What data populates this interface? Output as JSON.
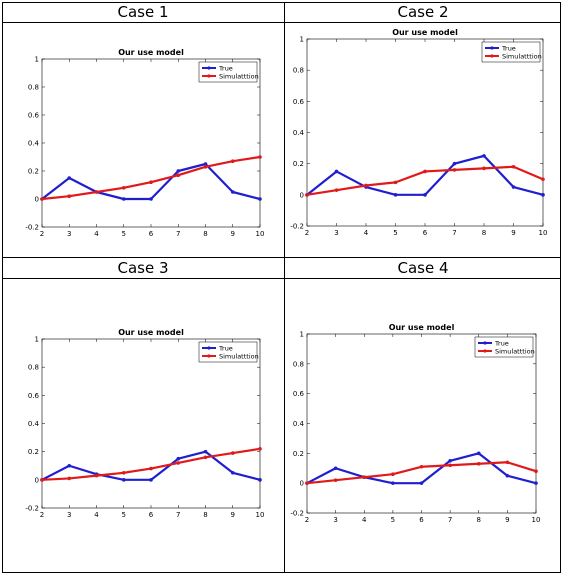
{
  "colors": {
    "true_series": "#1f1fd0",
    "sim_series": "#e01a1a"
  },
  "cases": [
    {
      "header": "Case 1",
      "chart_data": {
        "type": "line",
        "title": "Our use model",
        "x": [
          2,
          3,
          4,
          5,
          6,
          7,
          8,
          9,
          10
        ],
        "xticks": [
          "2",
          "3",
          "4",
          "5",
          "6",
          "7",
          "8",
          "9",
          "10"
        ],
        "yticks": [
          "-0.2",
          "0",
          "0.2",
          "0.4",
          "0.6",
          "0.8",
          "1"
        ],
        "xlim": [
          2,
          10
        ],
        "ylim": [
          -0.2,
          1
        ],
        "legend_position": "top-right",
        "series": [
          {
            "name": "True",
            "color": "#1f1fd0",
            "values": [
              0.0,
              0.15,
              0.05,
              0.0,
              0.0,
              0.2,
              0.25,
              0.05,
              0.0
            ]
          },
          {
            "name": "Simulatttion",
            "color": "#e01a1a",
            "values": [
              0.0,
              0.02,
              0.05,
              0.08,
              0.12,
              0.17,
              0.23,
              0.27,
              0.3
            ]
          }
        ]
      }
    },
    {
      "header": "Case 2",
      "chart_data": {
        "type": "line",
        "title": "Our use model",
        "x": [
          2,
          3,
          4,
          5,
          6,
          7,
          8,
          9,
          10
        ],
        "xticks": [
          "2",
          "3",
          "4",
          "5",
          "6",
          "7",
          "8",
          "9",
          "10"
        ],
        "yticks": [
          "-0.2",
          "0",
          "0.2",
          "0.4",
          "0.6",
          "0.8",
          "1"
        ],
        "xlim": [
          2,
          10
        ],
        "ylim": [
          -0.2,
          1
        ],
        "legend_position": "top-right",
        "series": [
          {
            "name": "True",
            "color": "#1f1fd0",
            "values": [
              0.0,
              0.15,
              0.05,
              0.0,
              0.0,
              0.2,
              0.25,
              0.05,
              0.0
            ]
          },
          {
            "name": "Simulatttion",
            "color": "#e01a1a",
            "values": [
              0.0,
              0.03,
              0.06,
              0.08,
              0.15,
              0.16,
              0.17,
              0.18,
              0.1
            ]
          }
        ]
      }
    },
    {
      "header": "Case 3",
      "chart_data": {
        "type": "line",
        "title": "Our use model",
        "x": [
          2,
          3,
          4,
          5,
          6,
          7,
          8,
          9,
          10
        ],
        "xticks": [
          "2",
          "3",
          "4",
          "5",
          "6",
          "7",
          "8",
          "9",
          "10"
        ],
        "yticks": [
          "-0.2",
          "0",
          "0.2",
          "0.4",
          "0.6",
          "0.8",
          "1"
        ],
        "xlim": [
          2,
          10
        ],
        "ylim": [
          -0.2,
          1
        ],
        "legend_position": "top-right",
        "series": [
          {
            "name": "True",
            "color": "#1f1fd0",
            "values": [
              0.0,
              0.1,
              0.04,
              0.0,
              0.0,
              0.15,
              0.2,
              0.05,
              0.0
            ]
          },
          {
            "name": "Simulatttion",
            "color": "#e01a1a",
            "values": [
              0.0,
              0.01,
              0.03,
              0.05,
              0.08,
              0.12,
              0.16,
              0.19,
              0.22
            ]
          }
        ]
      }
    },
    {
      "header": "Case 4",
      "chart_data": {
        "type": "line",
        "title": "Our use model",
        "x": [
          2,
          3,
          4,
          5,
          6,
          7,
          8,
          9,
          10
        ],
        "xticks": [
          "2",
          "3",
          "4",
          "5",
          "6",
          "7",
          "8",
          "9",
          "10"
        ],
        "yticks": [
          "-0.2",
          "0",
          "0.2",
          "0.4",
          "0.6",
          "0.8",
          "1"
        ],
        "xlim": [
          2,
          10
        ],
        "ylim": [
          -0.2,
          1
        ],
        "legend_position": "top-right",
        "series": [
          {
            "name": "True",
            "color": "#1f1fd0",
            "values": [
              0.0,
              0.1,
              0.04,
              0.0,
              0.0,
              0.15,
              0.2,
              0.05,
              0.0
            ]
          },
          {
            "name": "Simulatttion",
            "color": "#e01a1a",
            "values": [
              0.0,
              0.02,
              0.04,
              0.06,
              0.11,
              0.12,
              0.13,
              0.14,
              0.08
            ]
          }
        ]
      }
    }
  ]
}
